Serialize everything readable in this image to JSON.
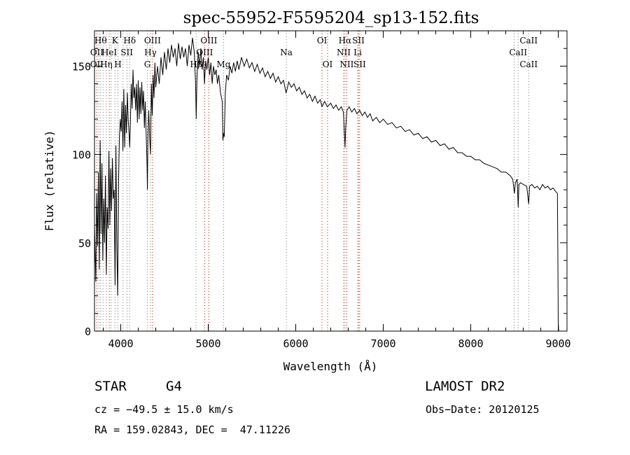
{
  "chart_data": {
    "type": "line",
    "title": "spec-55952-F5595204_sp13-152.fits",
    "xlabel": "Wavelength (Å)",
    "ylabel": "Flux (relative)",
    "xlim": [
      3700,
      9100
    ],
    "ylim": [
      0,
      170
    ],
    "x_ticks": [
      "4000",
      "5000",
      "6000",
      "7000",
      "8000",
      "9000"
    ],
    "y_ticks": [
      "0",
      "50",
      "100",
      "150"
    ],
    "grid": false,
    "series": [
      {
        "name": "",
        "color": "#000000",
        "points": [
          [
            3700,
            60
          ],
          [
            3715,
            28
          ],
          [
            3725,
            78
          ],
          [
            3735,
            48
          ],
          [
            3745,
            90
          ],
          [
            3755,
            35
          ],
          [
            3765,
            108
          ],
          [
            3775,
            55
          ],
          [
            3785,
            95
          ],
          [
            3795,
            40
          ],
          [
            3805,
            75
          ],
          [
            3815,
            50
          ],
          [
            3825,
            88
          ],
          [
            3835,
            32
          ],
          [
            3845,
            70
          ],
          [
            3855,
            58
          ],
          [
            3865,
            102
          ],
          [
            3875,
            60
          ],
          [
            3885,
            92
          ],
          [
            3895,
            68
          ],
          [
            3905,
            98
          ],
          [
            3915,
            75
          ],
          [
            3925,
            80
          ],
          [
            3935,
            26
          ],
          [
            3945,
            105
          ],
          [
            3955,
            48
          ],
          [
            3965,
            20
          ],
          [
            3975,
            85
          ],
          [
            3985,
            110
          ],
          [
            3995,
            120
          ],
          [
            4005,
            113
          ],
          [
            4015,
            130
          ],
          [
            4025,
            102
          ],
          [
            4035,
            137
          ],
          [
            4045,
            104
          ],
          [
            4055,
            128
          ],
          [
            4065,
            112
          ],
          [
            4075,
            135
          ],
          [
            4085,
            120
          ],
          [
            4095,
            112
          ],
          [
            4102,
            104
          ],
          [
            4110,
            118
          ],
          [
            4120,
            140
          ],
          [
            4130,
            126
          ],
          [
            4140,
            148
          ],
          [
            4150,
            132
          ],
          [
            4160,
            138
          ],
          [
            4170,
            125
          ],
          [
            4180,
            140
          ],
          [
            4190,
            118
          ],
          [
            4200,
            142
          ],
          [
            4210,
            120
          ],
          [
            4220,
            138
          ],
          [
            4230,
            123
          ],
          [
            4240,
            141
          ],
          [
            4250,
            125
          ],
          [
            4260,
            136
          ],
          [
            4270,
            115
          ],
          [
            4280,
            130
          ],
          [
            4290,
            112
          ],
          [
            4300,
            95
          ],
          [
            4305,
            80
          ],
          [
            4310,
            110
          ],
          [
            4320,
            125
          ],
          [
            4330,
            110
          ],
          [
            4340,
            100
          ],
          [
            4350,
            140
          ],
          [
            4360,
            122
          ],
          [
            4370,
            145
          ],
          [
            4380,
            132
          ],
          [
            4390,
            152
          ],
          [
            4400,
            138
          ],
          [
            4420,
            150
          ],
          [
            4440,
            140
          ],
          [
            4460,
            155
          ],
          [
            4480,
            145
          ],
          [
            4500,
            158
          ],
          [
            4520,
            148
          ],
          [
            4540,
            160
          ],
          [
            4560,
            152
          ],
          [
            4580,
            162
          ],
          [
            4600,
            155
          ],
          [
            4620,
            160
          ],
          [
            4640,
            150
          ],
          [
            4660,
            163
          ],
          [
            4680,
            154
          ],
          [
            4700,
            161
          ],
          [
            4720,
            155
          ],
          [
            4740,
            160
          ],
          [
            4760,
            150
          ],
          [
            4780,
            162
          ],
          [
            4800,
            156
          ],
          [
            4820,
            166
          ],
          [
            4840,
            158
          ],
          [
            4855,
            140
          ],
          [
            4862,
            120
          ],
          [
            4870,
            142
          ],
          [
            4885,
            158
          ],
          [
            4900,
            150
          ],
          [
            4915,
            160
          ],
          [
            4930,
            148
          ],
          [
            4945,
            155
          ],
          [
            4957,
            140
          ],
          [
            4970,
            153
          ],
          [
            4985,
            148
          ],
          [
            5000,
            155
          ],
          [
            5015,
            145
          ],
          [
            5030,
            152
          ],
          [
            5045,
            140
          ],
          [
            5060,
            150
          ],
          [
            5075,
            145
          ],
          [
            5090,
            148
          ],
          [
            5105,
            140
          ],
          [
            5120,
            145
          ],
          [
            5140,
            135
          ],
          [
            5160,
            130
          ],
          [
            5167,
            108
          ],
          [
            5175,
            112
          ],
          [
            5183,
            110
          ],
          [
            5195,
            135
          ],
          [
            5210,
            145
          ],
          [
            5230,
            142
          ],
          [
            5250,
            150
          ],
          [
            5270,
            146
          ],
          [
            5290,
            152
          ],
          [
            5310,
            147
          ],
          [
            5330,
            153
          ],
          [
            5350,
            148
          ],
          [
            5380,
            155
          ],
          [
            5410,
            150
          ],
          [
            5440,
            154
          ],
          [
            5470,
            149
          ],
          [
            5500,
            152
          ],
          [
            5530,
            147
          ],
          [
            5560,
            151
          ],
          [
            5590,
            146
          ],
          [
            5620,
            149
          ],
          [
            5650,
            144
          ],
          [
            5680,
            147
          ],
          [
            5710,
            143
          ],
          [
            5740,
            146
          ],
          [
            5770,
            141
          ],
          [
            5800,
            144
          ],
          [
            5830,
            140
          ],
          [
            5860,
            142
          ],
          [
            5889,
            135
          ],
          [
            5896,
            136
          ],
          [
            5920,
            141
          ],
          [
            5950,
            138
          ],
          [
            5980,
            140
          ],
          [
            6010,
            136
          ],
          [
            6040,
            138
          ],
          [
            6070,
            134
          ],
          [
            6100,
            136
          ],
          [
            6130,
            132
          ],
          [
            6160,
            134
          ],
          [
            6190,
            130
          ],
          [
            6220,
            133
          ],
          [
            6250,
            129
          ],
          [
            6280,
            131
          ],
          [
            6300,
            127
          ],
          [
            6330,
            130
          ],
          [
            6360,
            127
          ],
          [
            6400,
            129
          ],
          [
            6430,
            126
          ],
          [
            6460,
            128
          ],
          [
            6490,
            125
          ],
          [
            6520,
            127
          ],
          [
            6545,
            124
          ],
          [
            6556,
            112
          ],
          [
            6563,
            104
          ],
          [
            6570,
            115
          ],
          [
            6585,
            125
          ],
          [
            6610,
            127
          ],
          [
            6640,
            124
          ],
          [
            6670,
            126
          ],
          [
            6700,
            123
          ],
          [
            6730,
            125
          ],
          [
            6760,
            122
          ],
          [
            6790,
            124
          ],
          [
            6820,
            121
          ],
          [
            6850,
            123
          ],
          [
            6880,
            119
          ],
          [
            6920,
            121
          ],
          [
            6960,
            118
          ],
          [
            7000,
            120
          ],
          [
            7050,
            117
          ],
          [
            7100,
            118
          ],
          [
            7150,
            115
          ],
          [
            7200,
            116
          ],
          [
            7250,
            113
          ],
          [
            7300,
            114
          ],
          [
            7350,
            111
          ],
          [
            7400,
            112
          ],
          [
            7450,
            109
          ],
          [
            7500,
            110
          ],
          [
            7550,
            107
          ],
          [
            7600,
            108
          ],
          [
            7650,
            105
          ],
          [
            7700,
            106
          ],
          [
            7750,
            103
          ],
          [
            7800,
            104
          ],
          [
            7850,
            101
          ],
          [
            7900,
            101
          ],
          [
            7950,
            99
          ],
          [
            8000,
            99
          ],
          [
            8050,
            97
          ],
          [
            8100,
            97
          ],
          [
            8150,
            95
          ],
          [
            8200,
            94
          ],
          [
            8250,
            93
          ],
          [
            8300,
            92
          ],
          [
            8350,
            90
          ],
          [
            8400,
            90
          ],
          [
            8450,
            88
          ],
          [
            8480,
            86
          ],
          [
            8498,
            78
          ],
          [
            8510,
            84
          ],
          [
            8530,
            86
          ],
          [
            8542,
            70
          ],
          [
            8550,
            83
          ],
          [
            8570,
            84
          ],
          [
            8600,
            83
          ],
          [
            8640,
            82
          ],
          [
            8662,
            72
          ],
          [
            8672,
            82
          ],
          [
            8700,
            83
          ],
          [
            8730,
            81
          ],
          [
            8760,
            82
          ],
          [
            8790,
            80
          ],
          [
            8820,
            83
          ],
          [
            8850,
            81
          ],
          [
            8880,
            82
          ],
          [
            8910,
            80
          ],
          [
            8940,
            81
          ],
          [
            8970,
            79
          ],
          [
            8990,
            78
          ],
          [
            8996,
            40
          ],
          [
            9000,
            5
          ],
          [
            9005,
            0
          ]
        ]
      }
    ],
    "line_marks": [
      {
        "x": 3727,
        "color": "#cc0000"
      },
      {
        "x": 3750,
        "color": "#777777"
      },
      {
        "x": 3770,
        "color": "#777777"
      },
      {
        "x": 3798,
        "color": "#777777"
      },
      {
        "x": 3835,
        "color": "#777777"
      },
      {
        "x": 3869,
        "color": "#cc0000"
      },
      {
        "x": 3889,
        "color": "#777777"
      },
      {
        "x": 3934,
        "color": "#777777"
      },
      {
        "x": 3968,
        "color": "#777777"
      },
      {
        "x": 4026,
        "color": "#777777"
      },
      {
        "x": 4072,
        "color": "#777777"
      },
      {
        "x": 4102,
        "color": "#777777"
      },
      {
        "x": 4304,
        "color": "#777777"
      },
      {
        "x": 4340,
        "color": "#777777"
      },
      {
        "x": 4363,
        "color": "#cc0000"
      },
      {
        "x": 4861,
        "color": "#777777"
      },
      {
        "x": 4959,
        "color": "#cc0000"
      },
      {
        "x": 5007,
        "color": "#cc0000"
      },
      {
        "x": 5175,
        "color": "#777777"
      },
      {
        "x": 5893,
        "color": "#777777"
      },
      {
        "x": 6300,
        "color": "#cc0000"
      },
      {
        "x": 6364,
        "color": "#cc0000"
      },
      {
        "x": 6548,
        "color": "#cc0000"
      },
      {
        "x": 6563,
        "color": "#777777"
      },
      {
        "x": 6583,
        "color": "#cc0000"
      },
      {
        "x": 6708,
        "color": "#777777"
      },
      {
        "x": 6716,
        "color": "#cc0000"
      },
      {
        "x": 6731,
        "color": "#cc0000"
      },
      {
        "x": 8498,
        "color": "#777777"
      },
      {
        "x": 8542,
        "color": "#777777"
      },
      {
        "x": 8662,
        "color": "#777777"
      }
    ],
    "line_labels": [
      {
        "text": "Hθ",
        "x": 3770,
        "row": 1
      },
      {
        "text": "K",
        "x": 3934,
        "row": 1
      },
      {
        "text": "Hδ",
        "x": 4102,
        "row": 1
      },
      {
        "text": "OIII",
        "x": 4363,
        "row": 1
      },
      {
        "text": "OIII",
        "x": 5007,
        "row": 1
      },
      {
        "text": "OI",
        "x": 6300,
        "row": 1
      },
      {
        "text": "Hα",
        "x": 6563,
        "row": 1
      },
      {
        "text": "SII",
        "x": 6716,
        "row": 1
      },
      {
        "text": "CaII",
        "x": 8662,
        "row": 1
      },
      {
        "text": "OII",
        "x": 3727,
        "row": 2
      },
      {
        "text": "HeI",
        "x": 3869,
        "row": 2
      },
      {
        "text": "SII",
        "x": 4069,
        "row": 2
      },
      {
        "text": "Hγ",
        "x": 4340,
        "row": 2
      },
      {
        "text": "OIII",
        "x": 4959,
        "row": 2
      },
      {
        "text": "Na",
        "x": 5893,
        "row": 2
      },
      {
        "text": "NII",
        "x": 6548,
        "row": 2
      },
      {
        "text": "Li",
        "x": 6708,
        "row": 2
      },
      {
        "text": "CaII",
        "x": 8542,
        "row": 2
      },
      {
        "text": "OII",
        "x": 3727,
        "row": 3
      },
      {
        "text": "Hη",
        "x": 3835,
        "row": 3
      },
      {
        "text": "H",
        "x": 3968,
        "row": 3
      },
      {
        "text": "G",
        "x": 4304,
        "row": 3
      },
      {
        "text": "Hβ",
        "x": 4861,
        "row": 3
      },
      {
        "text": "Mg",
        "x": 5175,
        "row": 3
      },
      {
        "text": "OI",
        "x": 6364,
        "row": 3
      },
      {
        "text": "NII",
        "x": 6583,
        "row": 3
      },
      {
        "text": "SII",
        "x": 6731,
        "row": 3
      },
      {
        "text": "CaII",
        "x": 8662,
        "row": 3
      }
    ]
  },
  "info": {
    "object_class": "STAR",
    "subclass": "G4",
    "survey": "LAMOST DR2",
    "cz": "cz = −49.5 ± 15.0 km/s",
    "obs_date": "Obs−Date: 20120125",
    "radec": "RA = 159.02843, DEC =  47.11226"
  }
}
